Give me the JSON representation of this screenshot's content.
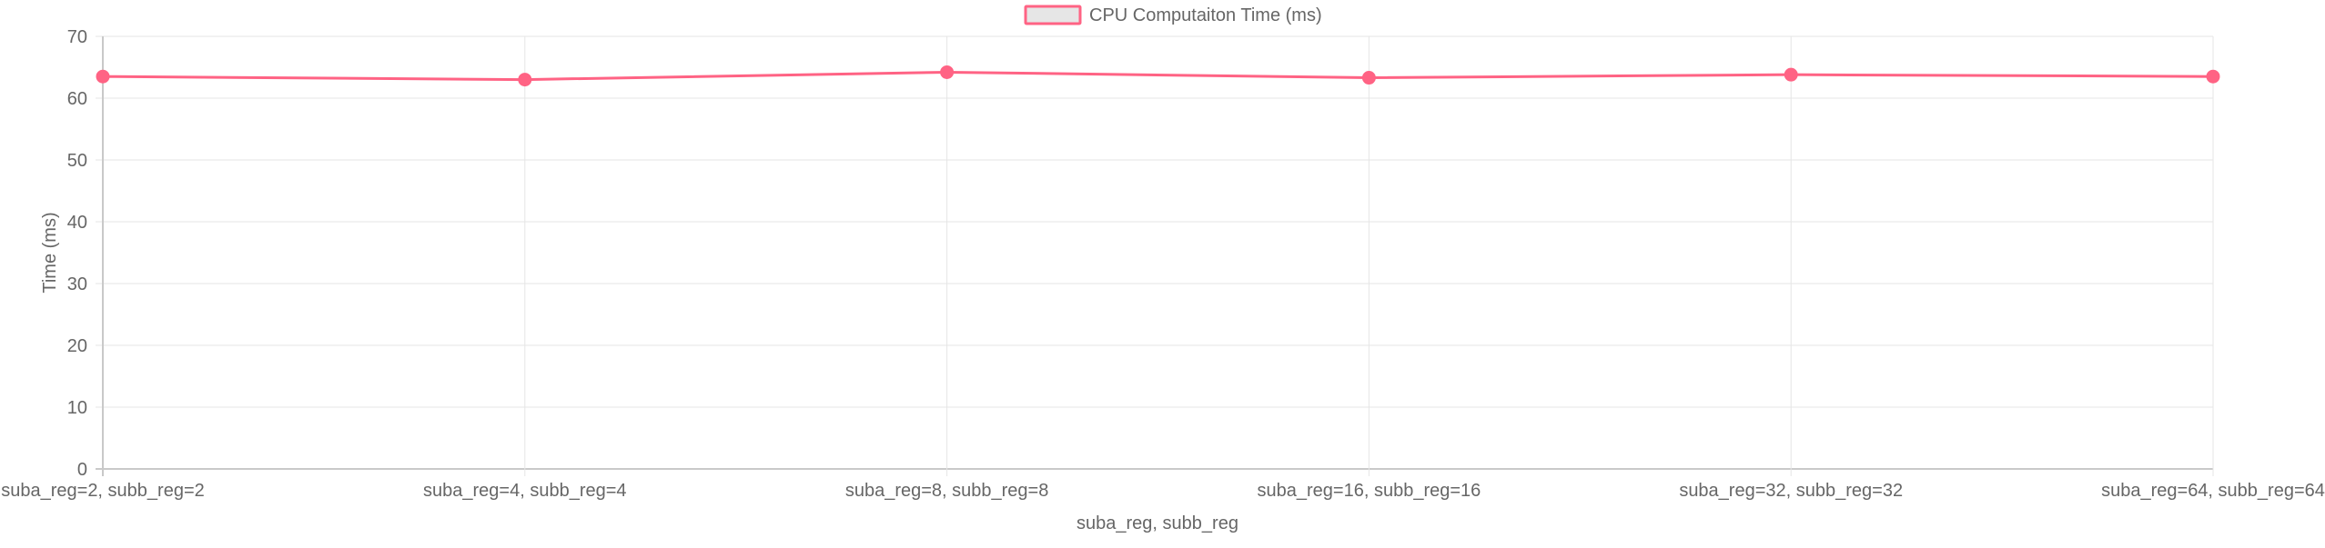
{
  "chart_data": {
    "type": "line",
    "categories": [
      "suba_reg=2, subb_reg=2",
      "suba_reg=4, subb_reg=4",
      "suba_reg=8, subb_reg=8",
      "suba_reg=16, subb_reg=16",
      "suba_reg=32, subb_reg=32",
      "suba_reg=64, subb_reg=64"
    ],
    "series": [
      {
        "name": "CPU Computaiton Time (ms)",
        "values": [
          63.5,
          63.0,
          64.2,
          63.3,
          63.8,
          63.5
        ],
        "color": "#ff6384",
        "fill_color": "#e6e6e6"
      }
    ],
    "title": "",
    "xlabel": "suba_reg, subb_reg",
    "ylabel": "Time (ms)",
    "ylim": [
      0,
      70
    ],
    "yticks": [
      "0",
      "10",
      "20",
      "30",
      "40",
      "50",
      "60",
      "70"
    ],
    "grid": true,
    "legend": "top-center",
    "grid_color": "#e5e5e5",
    "axis_color": "#c9c9c9"
  }
}
